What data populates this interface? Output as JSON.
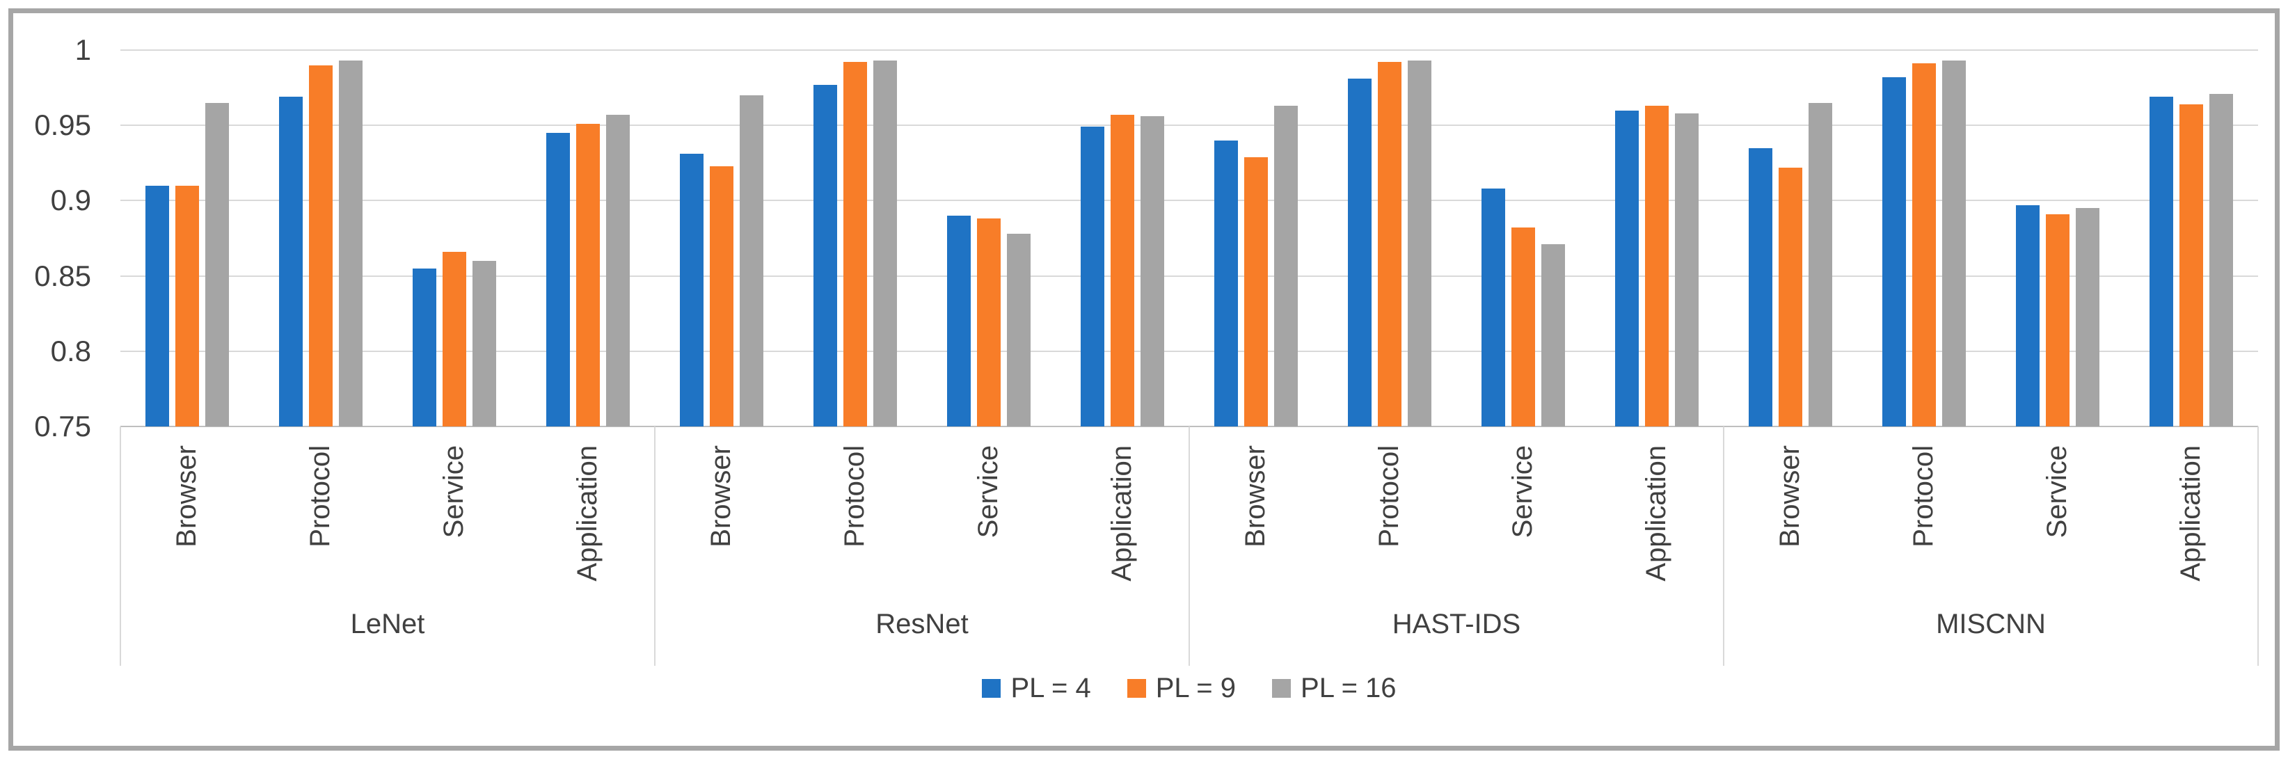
{
  "chart_data": {
    "type": "bar",
    "title": "",
    "xlabel": "",
    "ylabel": "",
    "grid": true,
    "legend_position": "bottom",
    "y_axis": {
      "min": 0.75,
      "max": 1.0,
      "tick_values": [
        1,
        0.95,
        0.9,
        0.85,
        0.8,
        0.75
      ],
      "tick_labels": [
        "1",
        "0.95",
        "0.9",
        "0.85",
        "0.8",
        "0.75"
      ]
    },
    "groups": [
      "LeNet",
      "ResNet",
      "HAST-IDS",
      "MISCNN"
    ],
    "categories": [
      "Browser",
      "Protocol",
      "Service",
      "Application"
    ],
    "series": [
      {
        "name": "PL = 4",
        "color": "#1f73c4",
        "values": [
          [
            0.91,
            0.969,
            0.855,
            0.945
          ],
          [
            0.931,
            0.977,
            0.89,
            0.949
          ],
          [
            0.94,
            0.981,
            0.908,
            0.96
          ],
          [
            0.935,
            0.982,
            0.897,
            0.969
          ]
        ]
      },
      {
        "name": "PL = 9",
        "color": "#f87d28",
        "values": [
          [
            0.91,
            0.99,
            0.866,
            0.951
          ],
          [
            0.923,
            0.992,
            0.888,
            0.957
          ],
          [
            0.929,
            0.992,
            0.882,
            0.963
          ],
          [
            0.922,
            0.991,
            0.891,
            0.964
          ]
        ]
      },
      {
        "name": "PL = 16",
        "color": "#a5a5a5",
        "values": [
          [
            0.965,
            0.993,
            0.86,
            0.957
          ],
          [
            0.97,
            0.993,
            0.878,
            0.956
          ],
          [
            0.963,
            0.993,
            0.871,
            0.958
          ],
          [
            0.965,
            0.993,
            0.895,
            0.971
          ]
        ]
      }
    ],
    "colors": {
      "gridline": "#d9d9d9",
      "axis_line": "#bfbfbf",
      "text": "#404040",
      "frame_border": "#a6a6a6"
    }
  }
}
